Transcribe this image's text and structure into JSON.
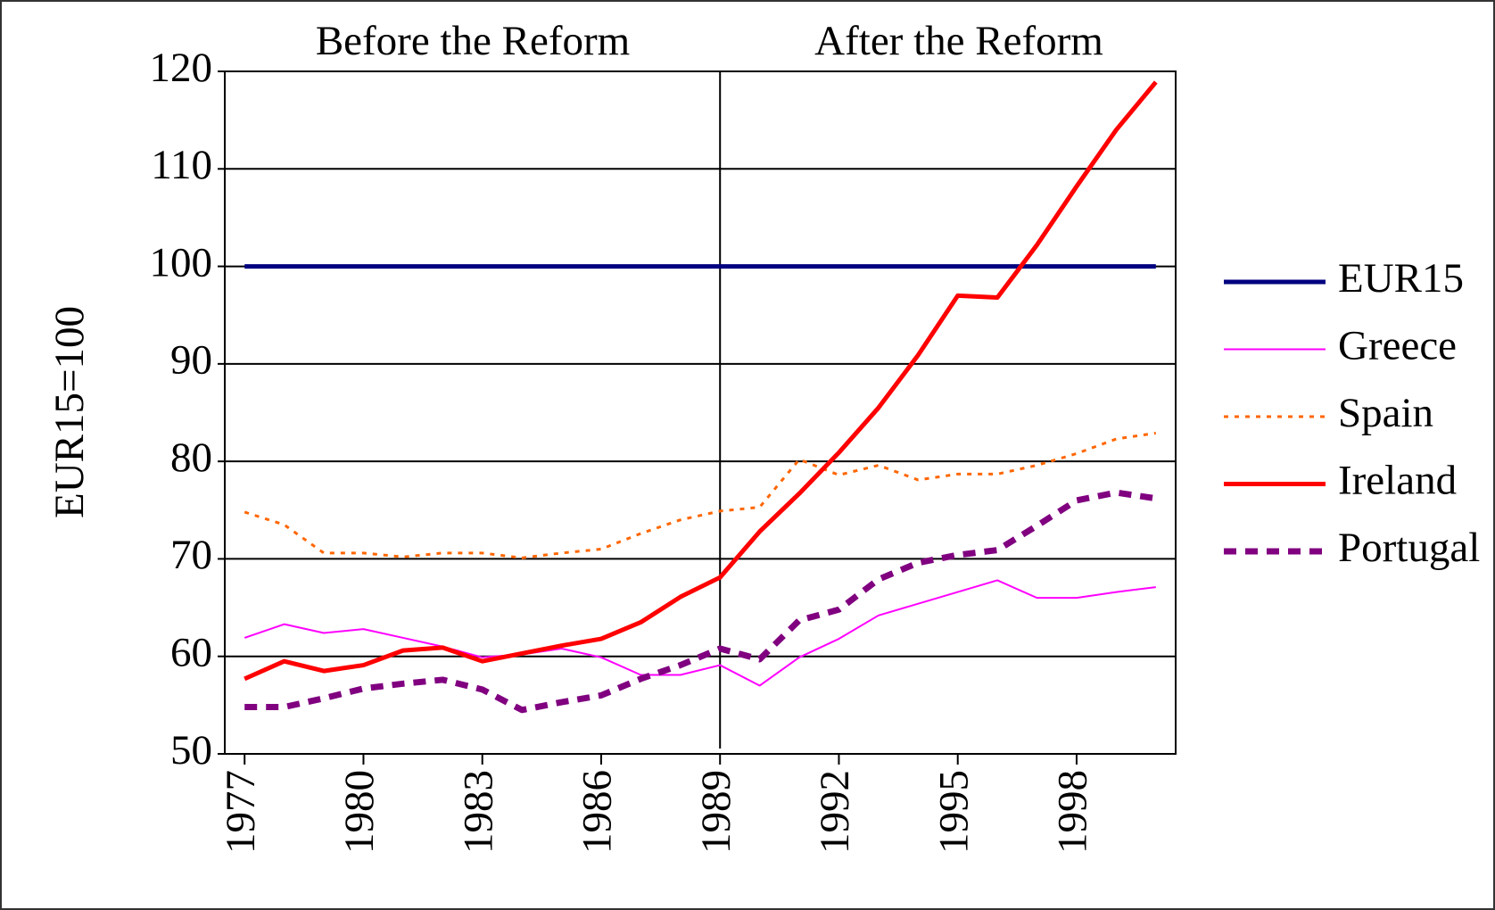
{
  "chart_data": {
    "type": "line",
    "annotations": [
      {
        "text": "Before the Reform"
      },
      {
        "text": "After the Reform"
      }
    ],
    "divider_x": 1989,
    "ylabel": "EUR15=100",
    "x": [
      1977,
      1978,
      1979,
      1980,
      1981,
      1982,
      1983,
      1984,
      1985,
      1986,
      1987,
      1988,
      1989,
      1990,
      1991,
      1992,
      1993,
      1994,
      1995,
      1996,
      1997,
      1998,
      1999,
      2000
    ],
    "xlim": [
      1976.5,
      2000.5
    ],
    "xticks": [
      1977,
      1980,
      1983,
      1986,
      1989,
      1992,
      1995,
      1998
    ],
    "ylim": [
      50,
      120
    ],
    "yticks": [
      50,
      60,
      70,
      80,
      90,
      100,
      110,
      120
    ],
    "grid": true,
    "legend": "right",
    "series": [
      {
        "name": "EUR15",
        "color": "#000080",
        "dash": "solid",
        "width": 5,
        "values": [
          100,
          100,
          100,
          100,
          100,
          100,
          100,
          100,
          100,
          100,
          100,
          100,
          100,
          100,
          100,
          100,
          100,
          100,
          100,
          100,
          100,
          100,
          100,
          100
        ]
      },
      {
        "name": "Greece",
        "color": "#ff00ff",
        "dash": "solid",
        "width": 2,
        "values": [
          61.9,
          63.3,
          62.4,
          62.8,
          61.9,
          61,
          59.9,
          60.2,
          60.8,
          59.9,
          58.1,
          58.1,
          59.1,
          57,
          59.9,
          61.8,
          64.2,
          65.4,
          66.6,
          67.8,
          66,
          66,
          66.6,
          67.1
        ]
      },
      {
        "name": "Spain",
        "color": "#ff6600",
        "dash": "dotted",
        "width": 3,
        "values": [
          74.8,
          73.5,
          70.6,
          70.6,
          70.2,
          70.6,
          70.6,
          70.1,
          70.6,
          71,
          72.6,
          74,
          74.9,
          75.3,
          80.2,
          78.6,
          79.6,
          78.1,
          78.7,
          78.7,
          79.6,
          80.8,
          82.3,
          82.9
        ]
      },
      {
        "name": "Ireland",
        "color": "#ff0000",
        "dash": "solid",
        "width": 5,
        "values": [
          57.7,
          59.5,
          58.5,
          59.1,
          60.6,
          60.9,
          59.5,
          60.3,
          61.1,
          61.8,
          63.5,
          66.1,
          68.1,
          72.8,
          76.7,
          80.9,
          85.5,
          90.9,
          97,
          96.8,
          102.2,
          108.2,
          114,
          118.9
        ]
      },
      {
        "name": "Portugal",
        "color": "#800080",
        "dash": "dashed",
        "width": 7,
        "values": [
          54.8,
          54.8,
          55.7,
          56.7,
          57.2,
          57.6,
          56.6,
          54.5,
          55.3,
          56,
          57.7,
          59.1,
          60.8,
          59.7,
          63.7,
          64.8,
          67.9,
          69.6,
          70.4,
          70.9,
          73.4,
          76,
          76.8,
          76.2
        ]
      }
    ]
  }
}
